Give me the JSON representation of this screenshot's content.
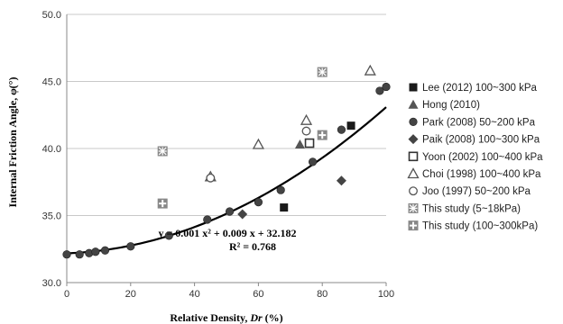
{
  "chart_data": {
    "type": "scatter",
    "xlabel_prefix": "Relative Density, ",
    "xlabel_var": "Dr",
    "xlabel_suffix": " (%)",
    "ylabel": "Internal Friction Angle, φ(°)",
    "xlim": [
      0,
      100
    ],
    "ylim": [
      30,
      50
    ],
    "xticks": [
      "0",
      "20",
      "40",
      "60",
      "80",
      "100"
    ],
    "yticks": [
      "30.0",
      "35.0",
      "40.0",
      "45.0",
      "50.0"
    ],
    "grid": "horizontal",
    "legend_position": "right",
    "series": [
      {
        "name": "Lee (2012) 100~300 kPa",
        "marker": "square-filled",
        "color": "#1a1a1a",
        "points": [
          [
            68,
            35.6
          ],
          [
            89,
            41.7
          ]
        ]
      },
      {
        "name": "Hong (2010)",
        "marker": "triangle-filled",
        "color": "#555555",
        "points": [
          [
            73,
            40.3
          ]
        ]
      },
      {
        "name": "Park (2008) 50~200 kPa",
        "marker": "circle-filled",
        "color": "#444444",
        "points": [
          [
            0,
            32.1
          ],
          [
            4,
            32.1
          ],
          [
            7,
            32.2
          ],
          [
            9,
            32.3
          ],
          [
            12,
            32.4
          ],
          [
            20,
            32.7
          ],
          [
            32,
            33.5
          ],
          [
            44,
            34.7
          ],
          [
            51,
            35.3
          ],
          [
            60,
            36.0
          ],
          [
            67,
            36.9
          ],
          [
            77,
            39.0
          ],
          [
            86,
            41.4
          ],
          [
            98,
            44.3
          ],
          [
            100,
            44.6
          ]
        ]
      },
      {
        "name": "Paik (2008) 100~300 kPa",
        "marker": "diamond-filled",
        "color": "#444444",
        "points": [
          [
            55,
            35.1
          ],
          [
            86,
            37.6
          ]
        ]
      },
      {
        "name": "Yoon (2002) 100~400 kPa",
        "marker": "square-open",
        "color": "#333333",
        "points": [
          [
            76,
            40.4
          ]
        ]
      },
      {
        "name": "Choi (1998) 100~400 kPa",
        "marker": "triangle-open",
        "color": "#555555",
        "points": [
          [
            45,
            37.9
          ],
          [
            60,
            40.3
          ],
          [
            75,
            42.1
          ],
          [
            95,
            45.8
          ]
        ]
      },
      {
        "name": "Joo (1997) 50~200 kPa",
        "marker": "circle-open",
        "color": "#555555",
        "points": [
          [
            45,
            37.8
          ],
          [
            75,
            41.3
          ]
        ]
      },
      {
        "name": "This study (5~18kPa)",
        "marker": "square-x",
        "color": "#888888",
        "points": [
          [
            30,
            39.8
          ],
          [
            80,
            45.7
          ]
        ]
      },
      {
        "name": "This study (100~300kPa)",
        "marker": "square-plus",
        "color": "#888888",
        "points": [
          [
            30,
            35.9
          ],
          [
            80,
            41.0
          ]
        ]
      }
    ],
    "trendline": {
      "a": 0.001,
      "b": 0.009,
      "c": 32.182,
      "color": "#000000"
    },
    "annotations": {
      "equation": "y = 0.001 x² + 0.009 x + 32.182",
      "r2": "R² = 0.768"
    }
  }
}
